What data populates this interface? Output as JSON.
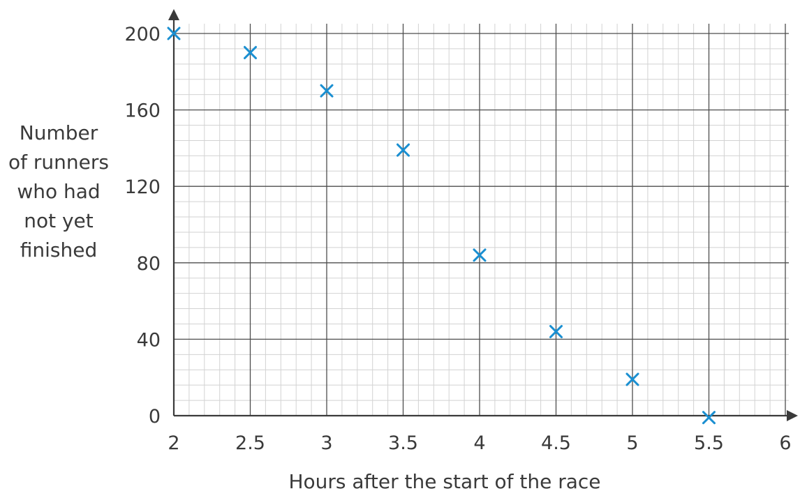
{
  "chart_data": {
    "type": "scatter",
    "title": "",
    "xlabel": "Hours after the start of the race",
    "ylabel_lines": [
      "Number",
      "of runners",
      "who had",
      "not yet",
      "finished"
    ],
    "xlim": [
      2,
      6
    ],
    "ylim": [
      0,
      200
    ],
    "x_ticks": [
      "2",
      "2.5",
      "3",
      "3.5",
      "4",
      "4.5",
      "5",
      "5.5",
      "6"
    ],
    "y_ticks": [
      "0",
      "40",
      "80",
      "120",
      "160",
      "200"
    ],
    "grid": true,
    "marker": "x",
    "marker_color": "#1a8fd1",
    "series": [
      {
        "x": [
          2,
          2.5,
          3,
          3.5,
          4,
          4.5,
          5,
          5.5
        ],
        "y": [
          200,
          190,
          170,
          139,
          84,
          44,
          19,
          -1
        ]
      }
    ]
  }
}
